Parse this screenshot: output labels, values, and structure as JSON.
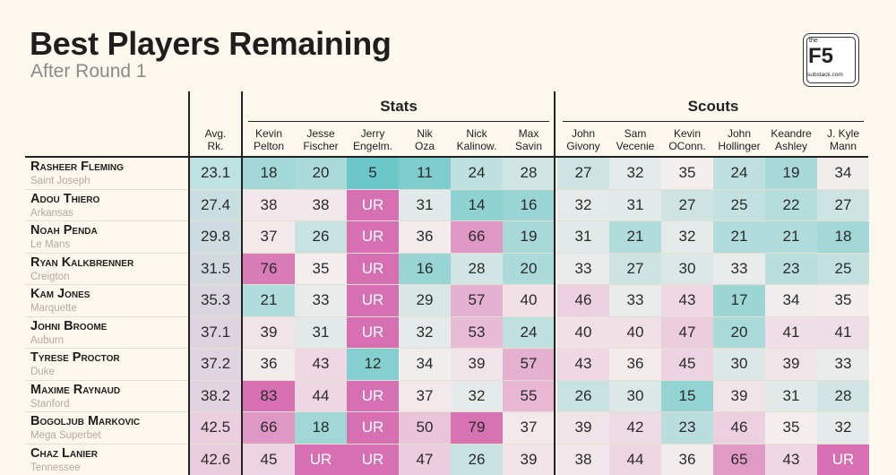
{
  "title": "Best Players Remaining",
  "subtitle": "After Round 1",
  "logo": {
    "small": "the",
    "big": "F5",
    "url": "substack.com"
  },
  "chart_data": {
    "type": "table",
    "title": "Best Players Remaining",
    "subtitle": "After Round 1",
    "groups": [
      {
        "name": "Stats",
        "columns": [
          "Kevin\nPelton",
          "Jesse\nFischer",
          "Jerry\nEngelm.",
          "Nik\nOza",
          "Nick\nKalinow.",
          "Max\nSavin"
        ]
      },
      {
        "name": "Scouts",
        "columns": [
          "John\nGivony",
          "Sam\nVecenie",
          "Kevin\nOConn.",
          "John\nHollinger",
          "Keandre\nAshley",
          "J. Kyle\nMann"
        ]
      }
    ],
    "avg_label": "Avg.\nRk.",
    "rows": [
      {
        "name": "Rasheer Fleming",
        "school": "Saint Joseph",
        "avg": "23.1",
        "values": [
          "18",
          "20",
          "5",
          "11",
          "24",
          "28",
          "27",
          "32",
          "35",
          "24",
          "19",
          "34"
        ]
      },
      {
        "name": "Adou Thiero",
        "school": "Arkansas",
        "avg": "27.4",
        "values": [
          "38",
          "38",
          "UR",
          "31",
          "14",
          "16",
          "32",
          "31",
          "27",
          "25",
          "22",
          "27"
        ]
      },
      {
        "name": "Noah Penda",
        "school": "Le Mans",
        "avg": "29.8",
        "values": [
          "37",
          "26",
          "UR",
          "36",
          "66",
          "19",
          "31",
          "21",
          "32",
          "21",
          "21",
          "18"
        ]
      },
      {
        "name": "Ryan Kalkbrenner",
        "school": "Creigton",
        "avg": "31.5",
        "values": [
          "76",
          "35",
          "UR",
          "16",
          "28",
          "20",
          "33",
          "27",
          "30",
          "33",
          "23",
          "25"
        ]
      },
      {
        "name": "Kam Jones",
        "school": "Marquette",
        "avg": "35.3",
        "values": [
          "21",
          "33",
          "UR",
          "29",
          "57",
          "40",
          "46",
          "33",
          "43",
          "17",
          "34",
          "35"
        ]
      },
      {
        "name": "Johni Broome",
        "school": "Auburn",
        "avg": "37.1",
        "values": [
          "39",
          "31",
          "UR",
          "32",
          "53",
          "24",
          "40",
          "40",
          "47",
          "20",
          "41",
          "41"
        ]
      },
      {
        "name": "Tyrese Proctor",
        "school": "Duke",
        "avg": "37.2",
        "values": [
          "36",
          "43",
          "12",
          "34",
          "39",
          "57",
          "43",
          "36",
          "45",
          "30",
          "39",
          "33"
        ]
      },
      {
        "name": "Maxime Raynaud",
        "school": "Stanford",
        "avg": "38.2",
        "values": [
          "83",
          "44",
          "UR",
          "37",
          "32",
          "55",
          "26",
          "30",
          "15",
          "39",
          "31",
          "28"
        ]
      },
      {
        "name": "Bogoljub Markovic",
        "school": "Mega Superbet",
        "avg": "42.5",
        "values": [
          "66",
          "18",
          "UR",
          "50",
          "79",
          "37",
          "39",
          "42",
          "23",
          "46",
          "35",
          "32"
        ]
      },
      {
        "name": "Chaz Lanier",
        "school": "Tennessee",
        "avg": "42.6",
        "values": [
          "45",
          "UR",
          "UR",
          "47",
          "26",
          "39",
          "38",
          "44",
          "36",
          "65",
          "43",
          "UR"
        ]
      }
    ]
  }
}
